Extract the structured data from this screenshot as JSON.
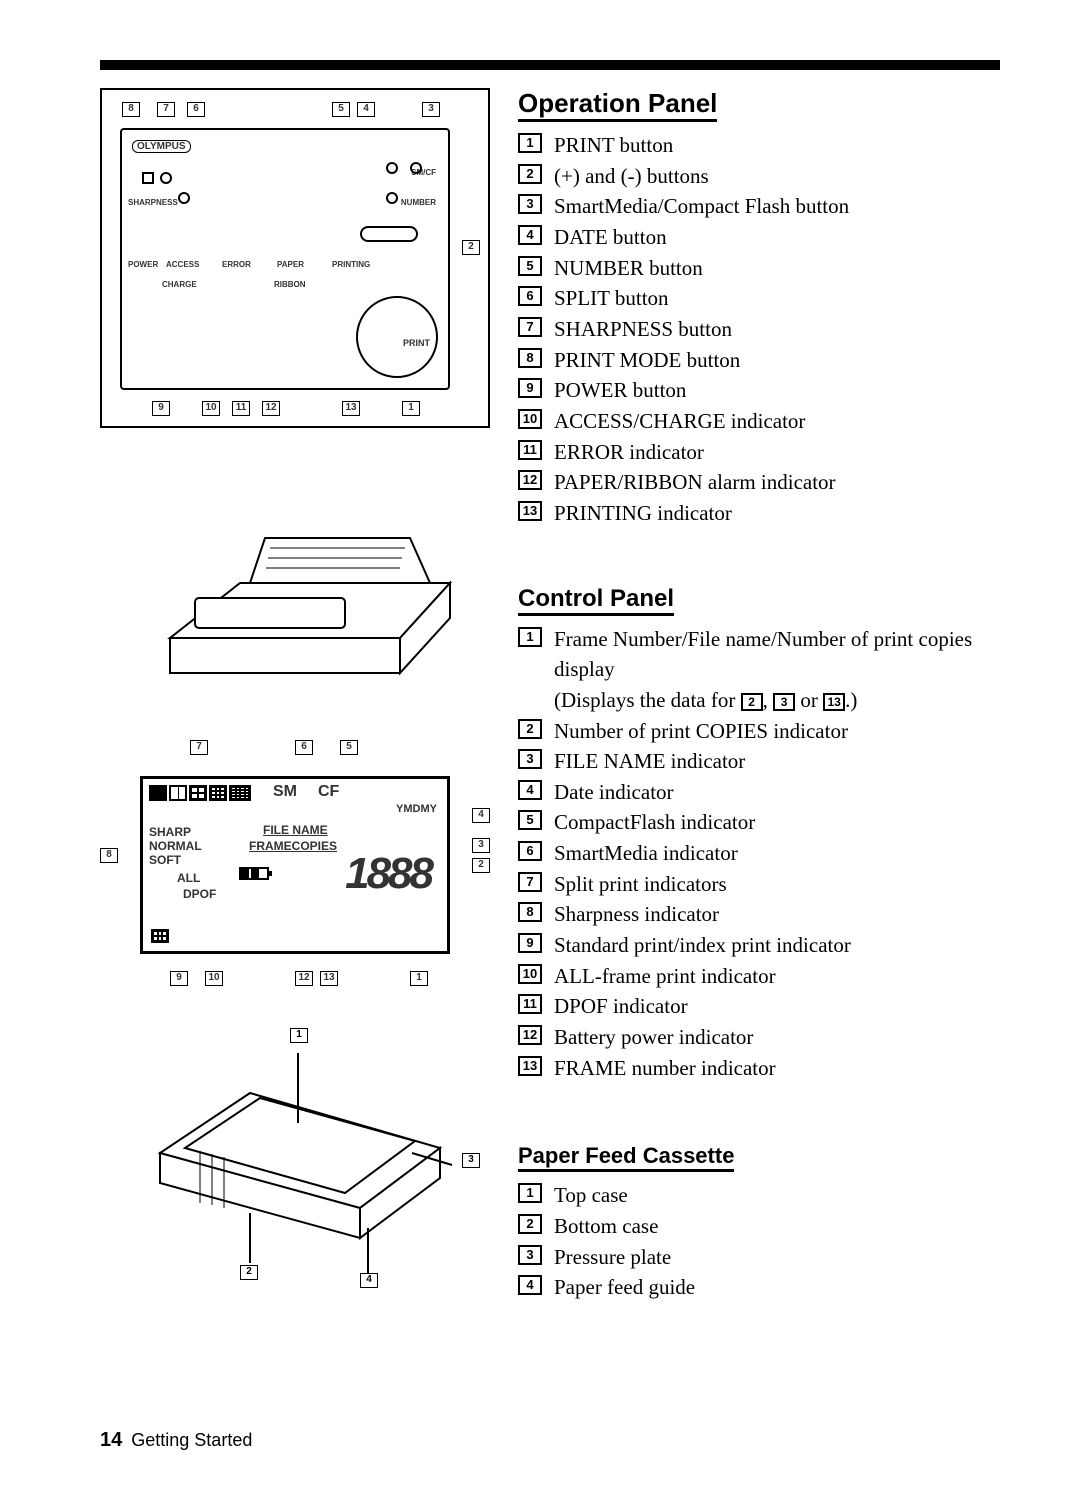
{
  "top_bar_color": "#000000",
  "operation_panel": {
    "title": "Operation Panel",
    "items": [
      {
        "n": "1",
        "label": "PRINT button"
      },
      {
        "n": "2",
        "label": "(+) and (-) buttons"
      },
      {
        "n": "3",
        "label": "SmartMedia/Compact Flash button"
      },
      {
        "n": "4",
        "label": "DATE button"
      },
      {
        "n": "5",
        "label": "NUMBER button"
      },
      {
        "n": "6",
        "label": "SPLIT button"
      },
      {
        "n": "7",
        "label": "SHARPNESS button"
      },
      {
        "n": "8",
        "label": "PRINT MODE button"
      },
      {
        "n": "9",
        "label": "POWER button"
      },
      {
        "n": "10",
        "label": "ACCESS/CHARGE indicator"
      },
      {
        "n": "11",
        "label": "ERROR indicator"
      },
      {
        "n": "12",
        "label": "PAPER/RIBBON alarm indicator"
      },
      {
        "n": "13",
        "label": "PRINTING indicator"
      }
    ]
  },
  "control_panel": {
    "title": "Control Panel",
    "items": [
      {
        "n": "1",
        "label": "Frame Number/File name/Number of print copies display"
      },
      {
        "n": "2",
        "label": "Number of print COPIES indicator"
      },
      {
        "n": "3",
        "label": "FILE NAME indicator"
      },
      {
        "n": "4",
        "label": "Date indicator"
      },
      {
        "n": "5",
        "label": "CompactFlash indicator"
      },
      {
        "n": "6",
        "label": "SmartMedia indicator"
      },
      {
        "n": "7",
        "label": "Split print indicators"
      },
      {
        "n": "8",
        "label": "Sharpness indicator"
      },
      {
        "n": "9",
        "label": "Standard print/index print indicator"
      },
      {
        "n": "10",
        "label": "ALL-frame print indicator"
      },
      {
        "n": "11",
        "label": "DPOF indicator"
      },
      {
        "n": "12",
        "label": "Battery power indicator"
      },
      {
        "n": "13",
        "label": "FRAME number indicator"
      }
    ],
    "sub_note_prefix": "(Displays the data for ",
    "sub_note_or": " or ",
    "sub_note_suffix": ".)",
    "sub_refs": [
      "2",
      "3",
      "13"
    ]
  },
  "paper_feed": {
    "title": "Paper Feed Cassette",
    "items": [
      {
        "n": "1",
        "label": "Top case"
      },
      {
        "n": "2",
        "label": "Bottom case"
      },
      {
        "n": "3",
        "label": "Pressure plate"
      },
      {
        "n": "4",
        "label": "Paper feed guide"
      }
    ]
  },
  "diagram1_labels": {
    "brand": "OLYMPUS",
    "sharpness": "SHARPNESS",
    "number": "NUMBER",
    "sm_cf": "SM/CF",
    "power": "POWER",
    "access": "ACCESS",
    "charge": "CHARGE",
    "error": "ERROR",
    "paper": "PAPER",
    "ribbon": "RIBBON",
    "printing": "PRINTING",
    "print": "PRINT",
    "callouts_top": [
      "8",
      "7",
      "6",
      "5",
      "4",
      "3"
    ],
    "callouts_right": [
      "2"
    ],
    "callouts_bottom": [
      "9",
      "10",
      "11",
      "12",
      "13",
      "1"
    ]
  },
  "diagram3_labels": {
    "sm": "SM",
    "cf": "CF",
    "ymdmy": "YMDMY",
    "sharp": "SHARP",
    "normal": "NORMAL",
    "soft": "SOFT",
    "filename": "FILE NAME",
    "framecopies": "FRAMECOPIES",
    "all": "ALL",
    "dpof": "DPOF",
    "digits": "1888",
    "callouts_top": [
      "7",
      "6",
      "5"
    ],
    "callouts_right": [
      "4",
      "3",
      "2"
    ],
    "callouts_left": [
      "8"
    ],
    "callouts_bottom": [
      "9",
      "10",
      "12",
      "13",
      "1"
    ]
  },
  "diagram4_labels": {
    "callouts": [
      "1",
      "2",
      "3",
      "4"
    ]
  },
  "footer": {
    "page_num": "14",
    "label": "Getting Started"
  }
}
